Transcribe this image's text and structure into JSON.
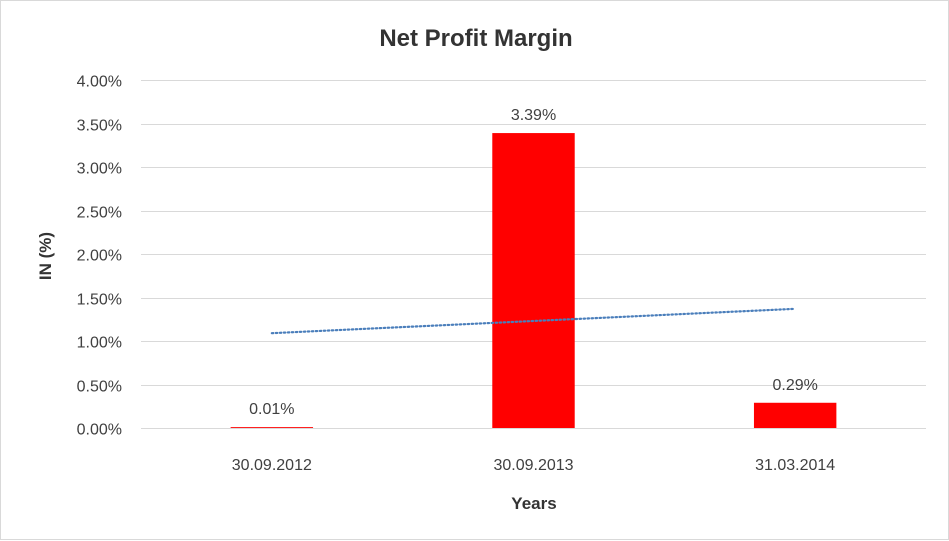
{
  "chart_data": {
    "type": "bar",
    "title": "Net Profit Margin",
    "xlabel": "Years",
    "ylabel": "IN (%)",
    "categories": [
      "30.09.2012",
      "30.09.2013",
      "31.03.2014"
    ],
    "values": [
      0.01,
      3.39,
      0.29
    ],
    "data_labels": [
      "0.01%",
      "3.39%",
      "0.29%"
    ],
    "ylim": [
      0,
      4
    ],
    "yticks": [
      0,
      0.5,
      1,
      1.5,
      2,
      2.5,
      3,
      3.5,
      4
    ],
    "ytick_labels": [
      "0.00%",
      "0.50%",
      "1.00%",
      "1.50%",
      "2.00%",
      "2.50%",
      "3.00%",
      "3.50%",
      "4.00%"
    ],
    "trendline": {
      "type": "linear",
      "style": "dotted",
      "start": 1.09,
      "end": 1.37
    },
    "grid": true,
    "legend": "none",
    "colors": {
      "bar": "#ff0000",
      "trendline": "#4a7ebb",
      "grid": "#d9d9d9"
    }
  }
}
